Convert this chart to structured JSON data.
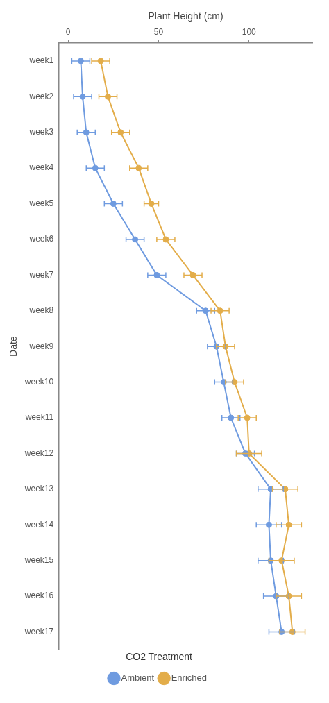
{
  "chart_data": {
    "type": "line",
    "orientation": "horizontal",
    "xlabel": "Plant Height (cm)",
    "ylabel": "Date",
    "legend_title": "CO2 Treatment",
    "legend": "bottom",
    "marker": "circle",
    "line_style": "solid",
    "grid": false,
    "categories": [
      "week1",
      "week2",
      "week3",
      "week4",
      "week5",
      "week6",
      "week7",
      "week8",
      "week9",
      "week10",
      "week11",
      "week12",
      "week13",
      "week14",
      "week15",
      "week16",
      "week17"
    ],
    "xlim": [
      -5,
      135
    ],
    "xticks": [
      0,
      50,
      100
    ],
    "series": [
      {
        "name": "Ambient",
        "color": "#6f9be0",
        "values": [
          7,
          8,
          10,
          15,
          25,
          37,
          49,
          76,
          82,
          86,
          90,
          98,
          112,
          111,
          112,
          115,
          118
        ],
        "errors": [
          5,
          5,
          5,
          5,
          5,
          5,
          5,
          5,
          5,
          5,
          5,
          5,
          7,
          7,
          7,
          7,
          7
        ]
      },
      {
        "name": "Enriched",
        "color": "#e3ad4a",
        "values": [
          18,
          22,
          29,
          39,
          46,
          54,
          69,
          84,
          87,
          92,
          99,
          100,
          120,
          122,
          118,
          122,
          124
        ],
        "errors": [
          5,
          5,
          5,
          5,
          4,
          5,
          5,
          5,
          5,
          5,
          5,
          7,
          7,
          7,
          7,
          7,
          7
        ]
      }
    ]
  }
}
